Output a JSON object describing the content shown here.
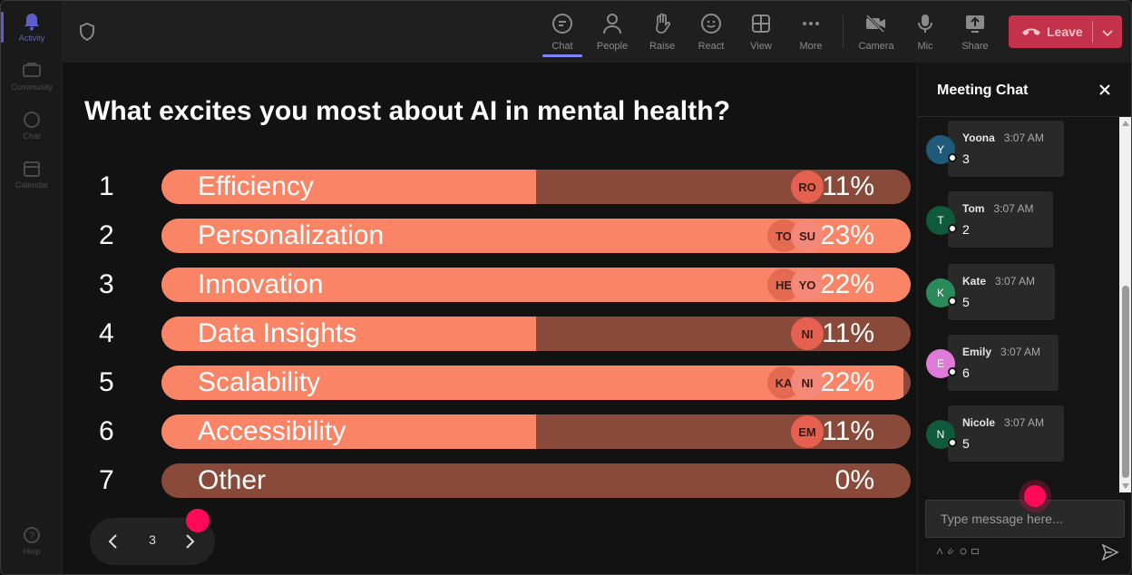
{
  "rail": {
    "items": [
      {
        "label": "Activity",
        "icon": "bell-icon",
        "active": true
      },
      {
        "label": "Community",
        "icon": "community-icon",
        "active": false
      },
      {
        "label": "Chat",
        "icon": "chat-icon",
        "active": false
      },
      {
        "label": "Calendar",
        "icon": "calendar-icon",
        "active": false
      },
      {
        "label": "Help",
        "icon": "help-icon",
        "active": false
      }
    ]
  },
  "toolbar": {
    "chat": "Chat",
    "people": "People",
    "raise": "Raise",
    "react": "React",
    "view": "View",
    "more": "More",
    "camera": "Camera",
    "mic": "Mic",
    "share": "Share",
    "leave": "Leave"
  },
  "poll": {
    "question": "What excites you most about AI in mental health?",
    "options": [
      {
        "num": "1",
        "label": "Efficiency",
        "percent": "11%",
        "fill": 0.5,
        "avatars": [
          "RO"
        ]
      },
      {
        "num": "2",
        "label": "Personalization",
        "percent": "23%",
        "fill": 1.0,
        "avatars": [
          "TO",
          "SU"
        ]
      },
      {
        "num": "3",
        "label": "Innovation",
        "percent": "22%",
        "fill": 1.0,
        "avatars": [
          "HE",
          "YO"
        ]
      },
      {
        "num": "4",
        "label": "Data Insights",
        "percent": "11%",
        "fill": 0.5,
        "avatars": [
          "NI"
        ]
      },
      {
        "num": "5",
        "label": "Scalability",
        "percent": "22%",
        "fill": 0.99,
        "avatars": [
          "KA",
          "NI"
        ]
      },
      {
        "num": "6",
        "label": "Accessibility",
        "percent": "11%",
        "fill": 0.5,
        "avatars": [
          "EM"
        ]
      },
      {
        "num": "7",
        "label": "Other",
        "percent": "0%",
        "fill": 0.0,
        "avatars": []
      }
    ],
    "page": "3"
  },
  "chat": {
    "title": "Meeting Chat",
    "messages": [
      {
        "initial": "Y",
        "name": "Yoona",
        "time": "3:07 AM",
        "text": "3",
        "color": "#1f5a7a"
      },
      {
        "initial": "T",
        "name": "Tom",
        "time": "3:07 AM",
        "text": "2",
        "color": "#0f5a3a"
      },
      {
        "initial": "K",
        "name": "Kate",
        "time": "3:07 AM",
        "text": "5",
        "color": "#2a8a5a"
      },
      {
        "initial": "E",
        "name": "Emily",
        "time": "3:07 AM",
        "text": "6",
        "color": "#e07ad8"
      },
      {
        "initial": "N",
        "name": "Nicole",
        "time": "3:07 AM",
        "text": "5",
        "color": "#0f5a3a"
      }
    ],
    "placeholder": "Type message here..."
  },
  "colors": {
    "bar_fill": "#f98466",
    "bar_track": "#8a4a3a",
    "leave": "#c4314b",
    "accent": "#7f85f5",
    "click_marker": "#ff0a5a"
  }
}
